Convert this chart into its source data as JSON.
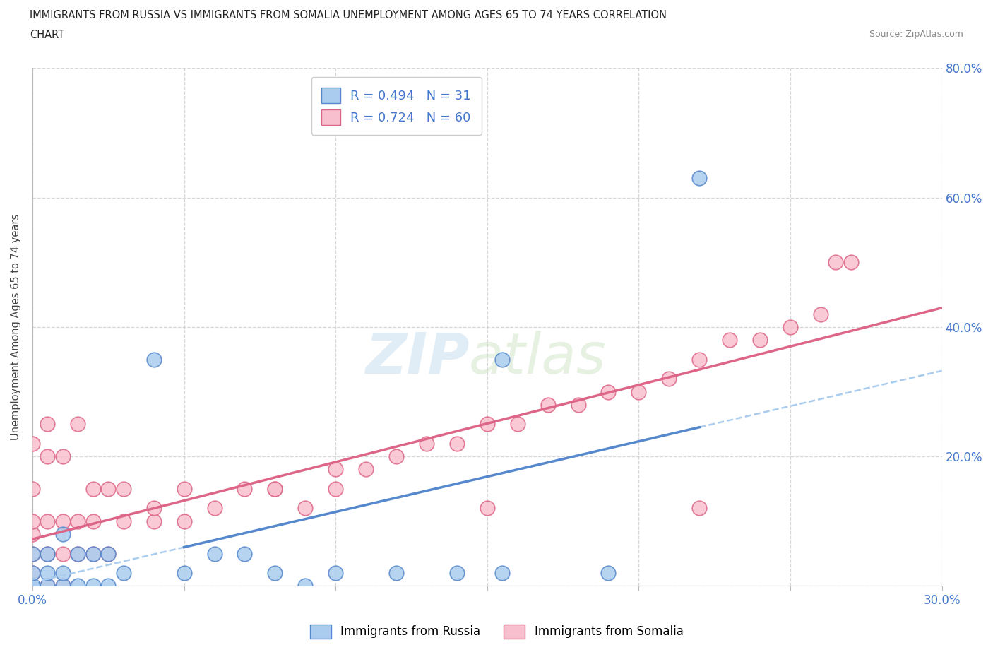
{
  "title_line1": "IMMIGRANTS FROM RUSSIA VS IMMIGRANTS FROM SOMALIA UNEMPLOYMENT AMONG AGES 65 TO 74 YEARS CORRELATION",
  "title_line2": "CHART",
  "source": "Source: ZipAtlas.com",
  "ylabel": "Unemployment Among Ages 65 to 74 years",
  "xlim": [
    0.0,
    0.3
  ],
  "ylim": [
    0.0,
    0.8
  ],
  "xticks": [
    0.0,
    0.05,
    0.1,
    0.15,
    0.2,
    0.25,
    0.3
  ],
  "yticks": [
    0.0,
    0.2,
    0.4,
    0.6,
    0.8
  ],
  "russia_color": "#aaccee",
  "russia_edge_color": "#5588cc",
  "somalia_color": "#f8c0ce",
  "somalia_edge_color": "#dd6688",
  "russia_trend_color": "#5588cc",
  "russia_trend_dash_color": "#aaccee",
  "somalia_trend_color": "#dd6688",
  "russia_R": 0.494,
  "russia_N": 31,
  "somalia_R": 0.724,
  "somalia_N": 60,
  "watermark_zip": "ZIP",
  "watermark_atlas": "atlas",
  "legend_label_russia": "Immigrants from Russia",
  "legend_label_somalia": "Immigrants from Somalia",
  "tick_color": "#4477cc",
  "russia_x": [
    0.0,
    0.0,
    0.0,
    0.0,
    0.0,
    0.005,
    0.005,
    0.005,
    0.01,
    0.01,
    0.01,
    0.015,
    0.015,
    0.02,
    0.02,
    0.025,
    0.025,
    0.03,
    0.04,
    0.05,
    0.06,
    0.07,
    0.08,
    0.09,
    0.1,
    0.12,
    0.14,
    0.155,
    0.19,
    0.22,
    0.155
  ],
  "russia_y": [
    0.0,
    0.0,
    0.0,
    0.02,
    0.05,
    0.0,
    0.02,
    0.05,
    0.0,
    0.02,
    0.08,
    0.0,
    0.05,
    0.0,
    0.05,
    0.0,
    0.05,
    0.02,
    0.35,
    0.02,
    0.05,
    0.05,
    0.02,
    0.0,
    0.02,
    0.02,
    0.02,
    0.35,
    0.02,
    0.63,
    0.02
  ],
  "somalia_x": [
    0.0,
    0.0,
    0.0,
    0.0,
    0.0,
    0.0,
    0.0,
    0.0,
    0.0,
    0.0,
    0.005,
    0.005,
    0.005,
    0.005,
    0.005,
    0.01,
    0.01,
    0.01,
    0.01,
    0.015,
    0.015,
    0.015,
    0.02,
    0.02,
    0.02,
    0.025,
    0.025,
    0.03,
    0.03,
    0.04,
    0.04,
    0.05,
    0.05,
    0.06,
    0.07,
    0.08,
    0.09,
    0.1,
    0.11,
    0.12,
    0.13,
    0.14,
    0.15,
    0.16,
    0.17,
    0.18,
    0.19,
    0.2,
    0.21,
    0.22,
    0.23,
    0.24,
    0.25,
    0.26,
    0.265,
    0.27,
    0.22,
    0.15,
    0.08,
    0.1
  ],
  "somalia_y": [
    0.0,
    0.0,
    0.0,
    0.0,
    0.02,
    0.05,
    0.08,
    0.1,
    0.15,
    0.22,
    0.0,
    0.05,
    0.1,
    0.2,
    0.25,
    0.0,
    0.05,
    0.1,
    0.2,
    0.05,
    0.1,
    0.25,
    0.05,
    0.1,
    0.15,
    0.05,
    0.15,
    0.1,
    0.15,
    0.1,
    0.12,
    0.1,
    0.15,
    0.12,
    0.15,
    0.15,
    0.12,
    0.15,
    0.18,
    0.2,
    0.22,
    0.22,
    0.25,
    0.25,
    0.28,
    0.28,
    0.3,
    0.3,
    0.32,
    0.35,
    0.38,
    0.38,
    0.4,
    0.42,
    0.5,
    0.5,
    0.12,
    0.12,
    0.15,
    0.18
  ]
}
